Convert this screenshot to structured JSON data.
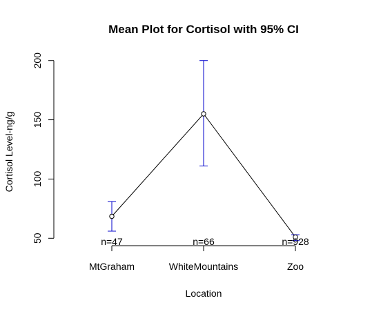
{
  "chart_data": {
    "type": "line",
    "title": "Mean Plot for Cortisol with 95% CI",
    "xlabel": "Location",
    "ylabel": "Cortisol Level-ng/g",
    "categories": [
      "MtGraham",
      "WhiteMountains",
      "Zoo"
    ],
    "means": [
      68.5,
      155,
      51
    ],
    "ci_lower": [
      56,
      111,
      48
    ],
    "ci_upper": [
      81,
      200,
      53
    ],
    "counts": [
      "n=47",
      "n=66",
      "n=928"
    ],
    "yticks": [
      50,
      100,
      150,
      200
    ],
    "ylim": [
      45.5,
      204.5
    ],
    "grid": false,
    "ci_color": "#0000CC",
    "line_color": "#000000"
  }
}
